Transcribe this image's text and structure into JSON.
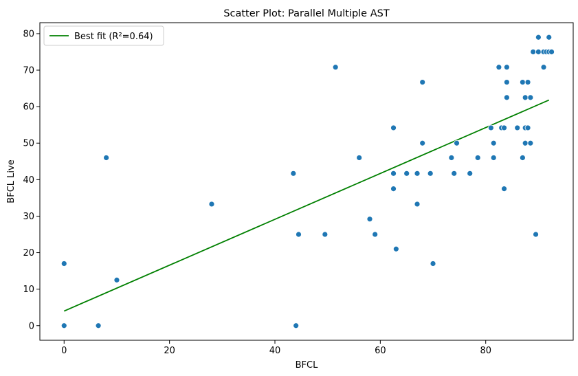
{
  "chart_data": {
    "type": "scatter",
    "title": "Scatter Plot: Parallel Multiple AST",
    "xlabel": "BFCL",
    "ylabel": "BFCL Live",
    "xlim": [
      -4.6,
      96.6
    ],
    "ylim": [
      -4,
      83
    ],
    "xticks": [
      0,
      20,
      40,
      60,
      80
    ],
    "yticks": [
      0,
      10,
      20,
      30,
      40,
      50,
      60,
      70,
      80
    ],
    "grid": false,
    "legend": {
      "position": "top-left",
      "entries": [
        "Best fit (R²=0.64)"
      ]
    },
    "colors": {
      "points": "#1f77b4",
      "fit_line": "#008000"
    },
    "series": [
      {
        "kind": "points",
        "x": [
          0,
          0,
          6.5,
          8,
          10,
          28,
          43.5,
          44,
          44.5,
          49.5,
          51.5,
          56,
          58,
          59,
          62.5,
          62.5,
          62.5,
          63,
          65,
          67,
          67,
          68,
          68,
          69.5,
          70,
          73.5,
          74,
          74.5,
          77,
          78.5,
          81,
          81.5,
          81.5,
          82.5,
          83,
          83.5,
          83.5,
          84,
          84,
          84,
          86,
          87,
          87,
          87.5,
          87.5,
          87.5,
          88,
          88,
          88.5,
          88.5,
          89,
          89.5,
          90,
          90,
          91,
          91,
          91.5,
          92,
          92,
          92.5
        ],
        "y": [
          17,
          0,
          0,
          46,
          12.5,
          33.3,
          41.7,
          0,
          25,
          25,
          70.8,
          46,
          29.2,
          25,
          54.2,
          41.7,
          37.5,
          21,
          41.7,
          41.7,
          33.3,
          66.7,
          50,
          41.7,
          17,
          46,
          41.7,
          50,
          41.7,
          46,
          54.2,
          50,
          46,
          70.8,
          54.2,
          54.2,
          37.5,
          70.8,
          66.7,
          62.5,
          54.2,
          66.7,
          46,
          62.5,
          54.2,
          50,
          66.7,
          54.2,
          62.5,
          50,
          75,
          25,
          79,
          75,
          75,
          70.8,
          75,
          79,
          75,
          75
        ]
      },
      {
        "name": "Best fit (R²=0.64)",
        "kind": "line",
        "x": [
          0,
          92
        ],
        "y": [
          4,
          61.8
        ]
      }
    ]
  }
}
